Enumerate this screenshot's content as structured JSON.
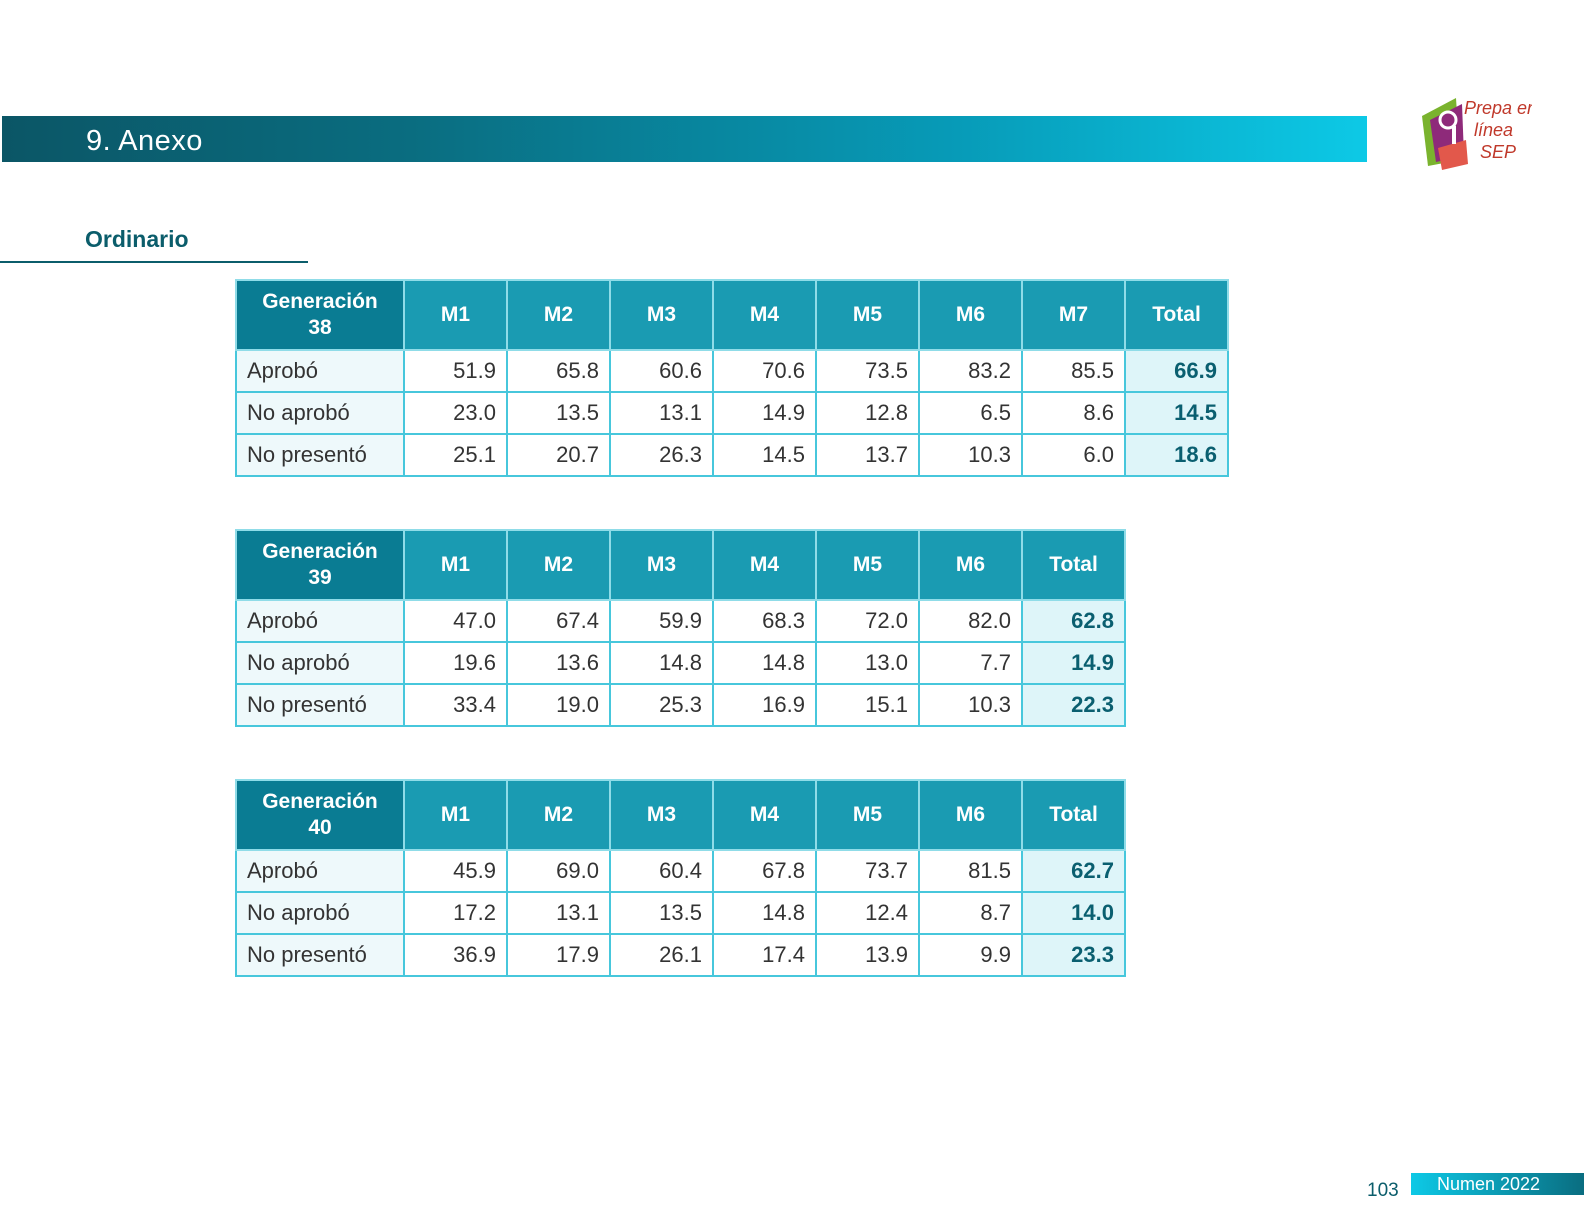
{
  "header": {
    "title": "9. Anexo"
  },
  "logo": {
    "text_1": "Prepa en",
    "text_2": "línea",
    "text_3": "SEP"
  },
  "section": {
    "title": "Ordinario"
  },
  "tables": [
    {
      "corner_line1": "Generación",
      "corner_line2": "38",
      "columns": [
        "M1",
        "M2",
        "M3",
        "M4",
        "M5",
        "M6",
        "M7",
        "Total"
      ],
      "rows": [
        {
          "label": "Aprobó",
          "values": [
            "51.9",
            "65.8",
            "60.6",
            "70.6",
            "73.5",
            "83.2",
            "85.5",
            "66.9"
          ]
        },
        {
          "label": "No aprobó",
          "values": [
            "23.0",
            "13.5",
            "13.1",
            "14.9",
            "12.8",
            "6.5",
            "8.6",
            "14.5"
          ]
        },
        {
          "label": "No presentó",
          "values": [
            "25.1",
            "20.7",
            "26.3",
            "14.5",
            "13.7",
            "10.3",
            "6.0",
            "18.6"
          ]
        }
      ]
    },
    {
      "corner_line1": "Generación",
      "corner_line2": "39",
      "columns": [
        "M1",
        "M2",
        "M3",
        "M4",
        "M5",
        "M6",
        "Total"
      ],
      "rows": [
        {
          "label": "Aprobó",
          "values": [
            "47.0",
            "67.4",
            "59.9",
            "68.3",
            "72.0",
            "82.0",
            "62.8"
          ]
        },
        {
          "label": "No aprobó",
          "values": [
            "19.6",
            "13.6",
            "14.8",
            "14.8",
            "13.0",
            "7.7",
            "14.9"
          ]
        },
        {
          "label": "No presentó",
          "values": [
            "33.4",
            "19.0",
            "25.3",
            "16.9",
            "15.1",
            "10.3",
            "22.3"
          ]
        }
      ]
    },
    {
      "corner_line1": "Generación",
      "corner_line2": "40",
      "columns": [
        "M1",
        "M2",
        "M3",
        "M4",
        "M5",
        "M6",
        "Total"
      ],
      "rows": [
        {
          "label": "Aprobó",
          "values": [
            "45.9",
            "69.0",
            "60.4",
            "67.8",
            "73.7",
            "81.5",
            "62.7"
          ]
        },
        {
          "label": "No aprobó",
          "values": [
            "17.2",
            "13.1",
            "13.5",
            "14.8",
            "12.4",
            "8.7",
            "14.0"
          ]
        },
        {
          "label": "No presentó",
          "values": [
            "36.9",
            "17.9",
            "26.1",
            "17.4",
            "13.9",
            "9.9",
            "23.3"
          ]
        }
      ]
    }
  ],
  "footer": {
    "page_number": "103",
    "publication": "Numen 2022"
  }
}
